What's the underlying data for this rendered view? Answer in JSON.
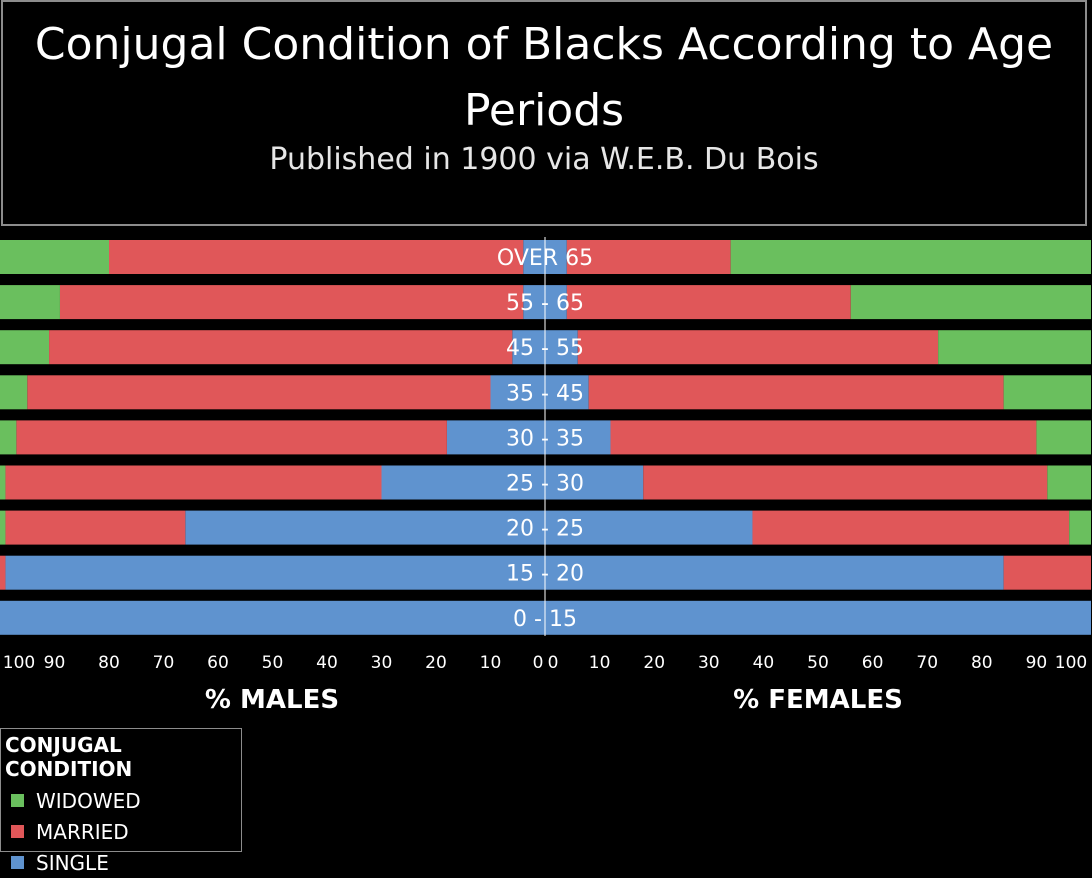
{
  "header": {
    "title": "Conjugal Condition of Blacks According to Age Periods",
    "subtitle": "Published in 1900 via W.E.B. Du Bois"
  },
  "legend": {
    "title": "CONJUGAL CONDITION",
    "items": [
      {
        "label": "WIDOWED",
        "color": "#6abf5e"
      },
      {
        "label": "MARRIED",
        "color": "#e05759"
      },
      {
        "label": "SINGLE",
        "color": "#5f93cf"
      }
    ]
  },
  "chart_data": {
    "type": "bar",
    "orientation": "horizontal-diverging",
    "categories": [
      "OVER 65",
      "55 - 65",
      "45 - 55",
      "35 - 45",
      "30 - 35",
      "25 - 30",
      "20 - 25",
      "15 - 20",
      "0 - 15"
    ],
    "left_axis_label": "% MALES",
    "right_axis_label": "% FEMALES",
    "left_ticks": [
      100,
      90,
      80,
      70,
      60,
      50,
      40,
      30,
      20,
      10,
      0
    ],
    "right_ticks": [
      0,
      10,
      20,
      30,
      40,
      50,
      60,
      70,
      80,
      90,
      100
    ],
    "xlim": [
      0,
      100
    ],
    "males": {
      "single": [
        4,
        4,
        6,
        10,
        18,
        30,
        66,
        99,
        100
      ],
      "married": [
        76,
        85,
        85,
        85,
        79,
        69,
        33,
        1,
        0
      ],
      "widowed": [
        20,
        11,
        9,
        5,
        3,
        1,
        1,
        0,
        0
      ]
    },
    "females": {
      "single": [
        4,
        4,
        6,
        8,
        12,
        18,
        38,
        84,
        100
      ],
      "married": [
        30,
        52,
        66,
        76,
        78,
        74,
        58,
        16,
        0
      ],
      "widowed": [
        66,
        44,
        28,
        16,
        10,
        8,
        4,
        0,
        0
      ]
    }
  }
}
